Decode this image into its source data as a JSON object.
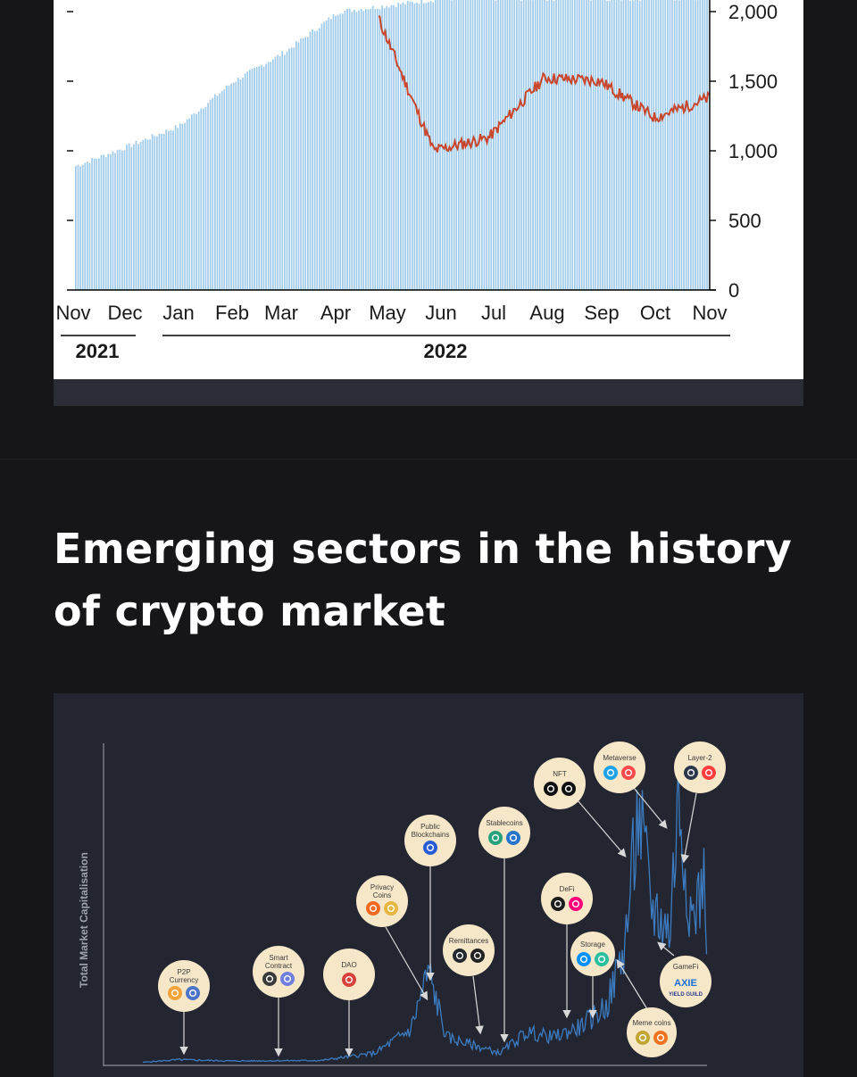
{
  "section": {
    "title": "Emerging sectors in the history of crypto market"
  },
  "chart_data": [
    {
      "type": "bar+line",
      "title": "",
      "categories": [
        "Nov",
        "Dec",
        "Jan",
        "Feb",
        "Mar",
        "Apr",
        "May",
        "Jun",
        "Jul",
        "Aug",
        "Sep",
        "Oct",
        "Nov"
      ],
      "year_groups": [
        {
          "label": "2021",
          "months": [
            "Nov",
            "Dec"
          ]
        },
        {
          "label": "2022",
          "months": [
            "Jan",
            "Feb",
            "Mar",
            "Apr",
            "May",
            "Jun",
            "Jul",
            "Aug",
            "Sep",
            "Oct",
            "Nov"
          ]
        }
      ],
      "right_axis": {
        "ticks": [
          "0",
          "500",
          "1,000",
          "1,500",
          "2,000"
        ],
        "ylim": [
          0,
          2100
        ]
      },
      "series": [
        {
          "kind": "bar",
          "color": "#9ecbe9",
          "x": [
            "2021-11",
            "2021-12",
            "2022-01",
            "2022-02",
            "2022-03",
            "2022-04",
            "2022-05",
            "2022-06",
            "2022-07",
            "2022-08",
            "2022-09",
            "2022-10",
            "2022-11"
          ],
          "values": [
            930,
            1080,
            1240,
            1570,
            1800,
            2100,
            2150,
            2200,
            2200,
            2200,
            2200,
            2200,
            2200
          ]
        },
        {
          "kind": "line",
          "color": "#c9462c",
          "x": [
            "2022-05",
            "2022-06",
            "2022-07",
            "2022-08",
            "2022-09",
            "2022-10",
            "2022-11"
          ],
          "values": [
            2050,
            1050,
            1150,
            1600,
            1580,
            1300,
            1450
          ]
        }
      ]
    },
    {
      "type": "line",
      "ylabel": "Total Market Capitalisation",
      "color": "#3c7bc0",
      "values_relative": [
        0.01,
        0.01,
        0.02,
        0.05,
        0.12,
        0.35,
        0.08,
        0.1,
        0.05,
        0.12,
        0.18,
        0.3,
        0.9,
        0.6,
        1.0,
        0.55,
        0.75
      ],
      "annotations": [
        {
          "label": "P2P Currency",
          "lines": [
            "P2P",
            "Currency"
          ],
          "icons": [
            "bitcoin-icon",
            "litecoin-icon"
          ]
        },
        {
          "label": "Smart Contract",
          "lines": [
            "Smart",
            "Contract"
          ],
          "icons": [
            "ethereum-classic-icon",
            "ethereum-icon"
          ]
        },
        {
          "label": "DAO",
          "lines": [
            "DAO"
          ],
          "icons": [
            "dao-icon"
          ]
        },
        {
          "label": "Privacy Coins",
          "lines": [
            "Privacy",
            "Coins"
          ],
          "icons": [
            "monero-icon",
            "zcash-icon"
          ]
        },
        {
          "label": "Public Blockchains",
          "lines": [
            "Public",
            "Blockchains"
          ],
          "icons": [
            "cardano-icon"
          ]
        },
        {
          "label": "Remittances",
          "lines": [
            "Remittances"
          ],
          "icons": [
            "xrp-icon",
            "stellar-icon"
          ]
        },
        {
          "label": "Stablecoins",
          "lines": [
            "Stablecoins"
          ],
          "icons": [
            "tether-icon",
            "usdc-icon"
          ]
        },
        {
          "label": "NFT",
          "lines": [
            "NFT"
          ],
          "icons": [
            "top-shot-icon",
            "nft-coin-icon"
          ]
        },
        {
          "label": "DeFi",
          "lines": [
            "DeFi"
          ],
          "icons": [
            "defi-coin-icon",
            "uniswap-icon"
          ]
        },
        {
          "label": "Storage",
          "lines": [
            "Storage"
          ],
          "icons": [
            "filecoin-icon",
            "storage-coin-icon"
          ]
        },
        {
          "label": "Metaverse",
          "lines": [
            "Metaverse"
          ],
          "icons": [
            "sandbox-icon",
            "decentraland-icon"
          ]
        },
        {
          "label": "Layer-2",
          "lines": [
            "Layer-2"
          ],
          "icons": [
            "arbitrum-icon",
            "optimism-icon"
          ]
        },
        {
          "label": "GameFi",
          "lines": [
            "GameFi"
          ],
          "icons": [
            "axie-icon",
            "yield-guild-icon"
          ],
          "icon_text": [
            "AXIE",
            "YIELD GUILD"
          ]
        },
        {
          "label": "Meme coins",
          "lines": [
            "Meme coins"
          ],
          "icons": [
            "dogecoin-icon",
            "shiba-icon"
          ]
        }
      ]
    }
  ]
}
